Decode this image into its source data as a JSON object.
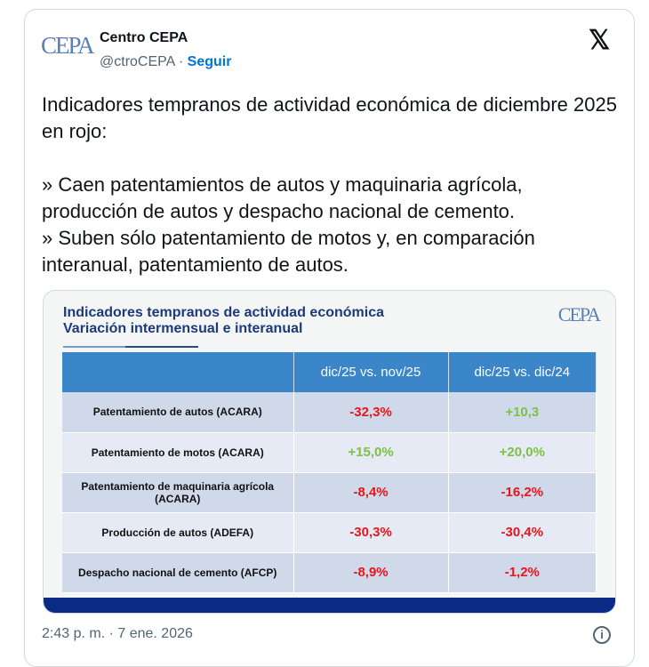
{
  "author": {
    "name": "Centro CEPA",
    "handle": "@ctroCEPA",
    "separator": " · ",
    "follow": "Seguir",
    "avatar_text": "CEPA"
  },
  "tweet_text": "Indicadores tempranos de actividad económica de diciembre 2025 en rojo:\n\n» Caen patentamientos de autos y maquinaria agrícola, producción de autos y despacho nacional de cemento.\n» Suben sólo patentamiento de motos y, en comparación interanual, patentamiento de autos.",
  "image": {
    "title1": "Indicadores tempranos de actividad económica",
    "title2": "Variación intermensual e interanual",
    "logo": "CEPA",
    "columns": [
      "",
      "dic/25 vs. nov/25",
      "dic/25 vs. dic/24"
    ],
    "rows": [
      {
        "label": "Patentamiento de autos (ACARA)",
        "v1": "-32,3%",
        "c1": "#e8151b",
        "v2": "+10,3",
        "c2": "#7dc142"
      },
      {
        "label": "Patentamiento de motos (ACARA)",
        "v1": "+15,0%",
        "c1": "#7dc142",
        "v2": "+20,0%",
        "c2": "#7dc142"
      },
      {
        "label": "Patentamiento de maquinaria agrícola (ACARA)",
        "v1": "-8,4%",
        "c1": "#e8151b",
        "v2": "-16,2%",
        "c2": "#e8151b"
      },
      {
        "label": "Producción de autos (ADEFA)",
        "v1": "-30,3%",
        "c1": "#e8151b",
        "v2": "-30,4%",
        "c2": "#e8151b"
      },
      {
        "label": "Despacho nacional de cemento (AFCP)",
        "v1": "-8,9%",
        "c1": "#e8151b",
        "v2": "-1,2%",
        "c2": "#e8151b"
      }
    ]
  },
  "timestamp": "2:43 p. m. · 7 ene. 2026",
  "icons": {
    "x": "x-logo-icon",
    "info": "info-icon"
  }
}
